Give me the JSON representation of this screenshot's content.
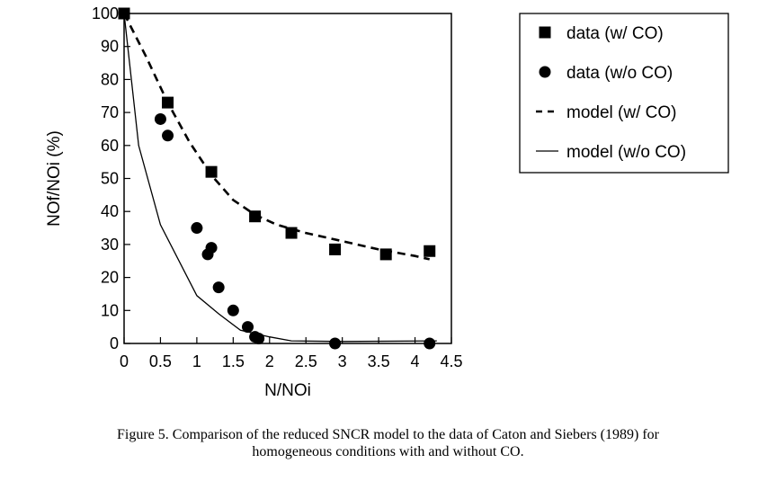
{
  "chart_data": {
    "type": "scatter",
    "title": "",
    "xlabel": "N/NOi",
    "ylabel": "NOf/NOi (%)",
    "xlim": [
      0,
      4.5
    ],
    "ylim": [
      0,
      100
    ],
    "xticks": [
      0,
      0.5,
      1,
      1.5,
      2,
      2.5,
      3,
      3.5,
      4,
      4.5
    ],
    "xtick_labels": [
      "0",
      "0.5",
      "1",
      "1.5",
      "2",
      "2.5",
      "3",
      "3.5",
      "4",
      "4.5"
    ],
    "yticks": [
      0,
      10,
      20,
      30,
      40,
      50,
      60,
      70,
      80,
      90,
      100
    ],
    "ytick_labels": [
      "0",
      "10",
      "20",
      "30",
      "40",
      "50",
      "60",
      "70",
      "80",
      "90",
      "100"
    ],
    "grid": false,
    "legend_position": "right",
    "series": [
      {
        "name": "data (w/ CO)",
        "kind": "marker",
        "marker": "square",
        "points": [
          [
            0,
            100
          ],
          [
            0.6,
            73
          ],
          [
            1.2,
            52
          ],
          [
            1.8,
            38.5
          ],
          [
            2.3,
            33.5
          ],
          [
            2.9,
            28.5
          ],
          [
            3.6,
            27
          ],
          [
            4.2,
            28
          ]
        ]
      },
      {
        "name": "data (w/o CO)",
        "kind": "marker",
        "marker": "circle",
        "points": [
          [
            0.5,
            68
          ],
          [
            0.6,
            63
          ],
          [
            1.0,
            35
          ],
          [
            1.15,
            27
          ],
          [
            1.2,
            29
          ],
          [
            1.3,
            17
          ],
          [
            1.5,
            10
          ],
          [
            1.7,
            5
          ],
          [
            1.8,
            2
          ],
          [
            1.85,
            1.5
          ],
          [
            2.9,
            0
          ],
          [
            4.2,
            0
          ]
        ]
      },
      {
        "name": "model (w/ CO)",
        "kind": "line",
        "dash": "dashed",
        "points": [
          [
            0,
            100
          ],
          [
            0.3,
            87
          ],
          [
            0.6,
            73
          ],
          [
            0.9,
            61
          ],
          [
            1.2,
            51
          ],
          [
            1.5,
            43.5
          ],
          [
            1.8,
            39
          ],
          [
            2.1,
            36
          ],
          [
            2.5,
            33.5
          ],
          [
            3.0,
            31
          ],
          [
            3.5,
            28.5
          ],
          [
            4.0,
            26.5
          ],
          [
            4.2,
            25.5
          ]
        ]
      },
      {
        "name": "model (w/o CO)",
        "kind": "line",
        "dash": "solid",
        "points": [
          [
            0,
            100
          ],
          [
            0.2,
            60
          ],
          [
            0.5,
            36
          ],
          [
            1.0,
            14.5
          ],
          [
            1.3,
            9
          ],
          [
            1.6,
            4
          ],
          [
            2.0,
            2
          ],
          [
            2.3,
            0.8
          ],
          [
            3.0,
            0.6
          ],
          [
            4.3,
            0.8
          ]
        ]
      }
    ]
  },
  "caption": {
    "line1": "Figure 5.  Comparison of the reduced SNCR model to the data of Caton and Siebers (1989) for",
    "line2": "homogeneous conditions with and without CO."
  }
}
